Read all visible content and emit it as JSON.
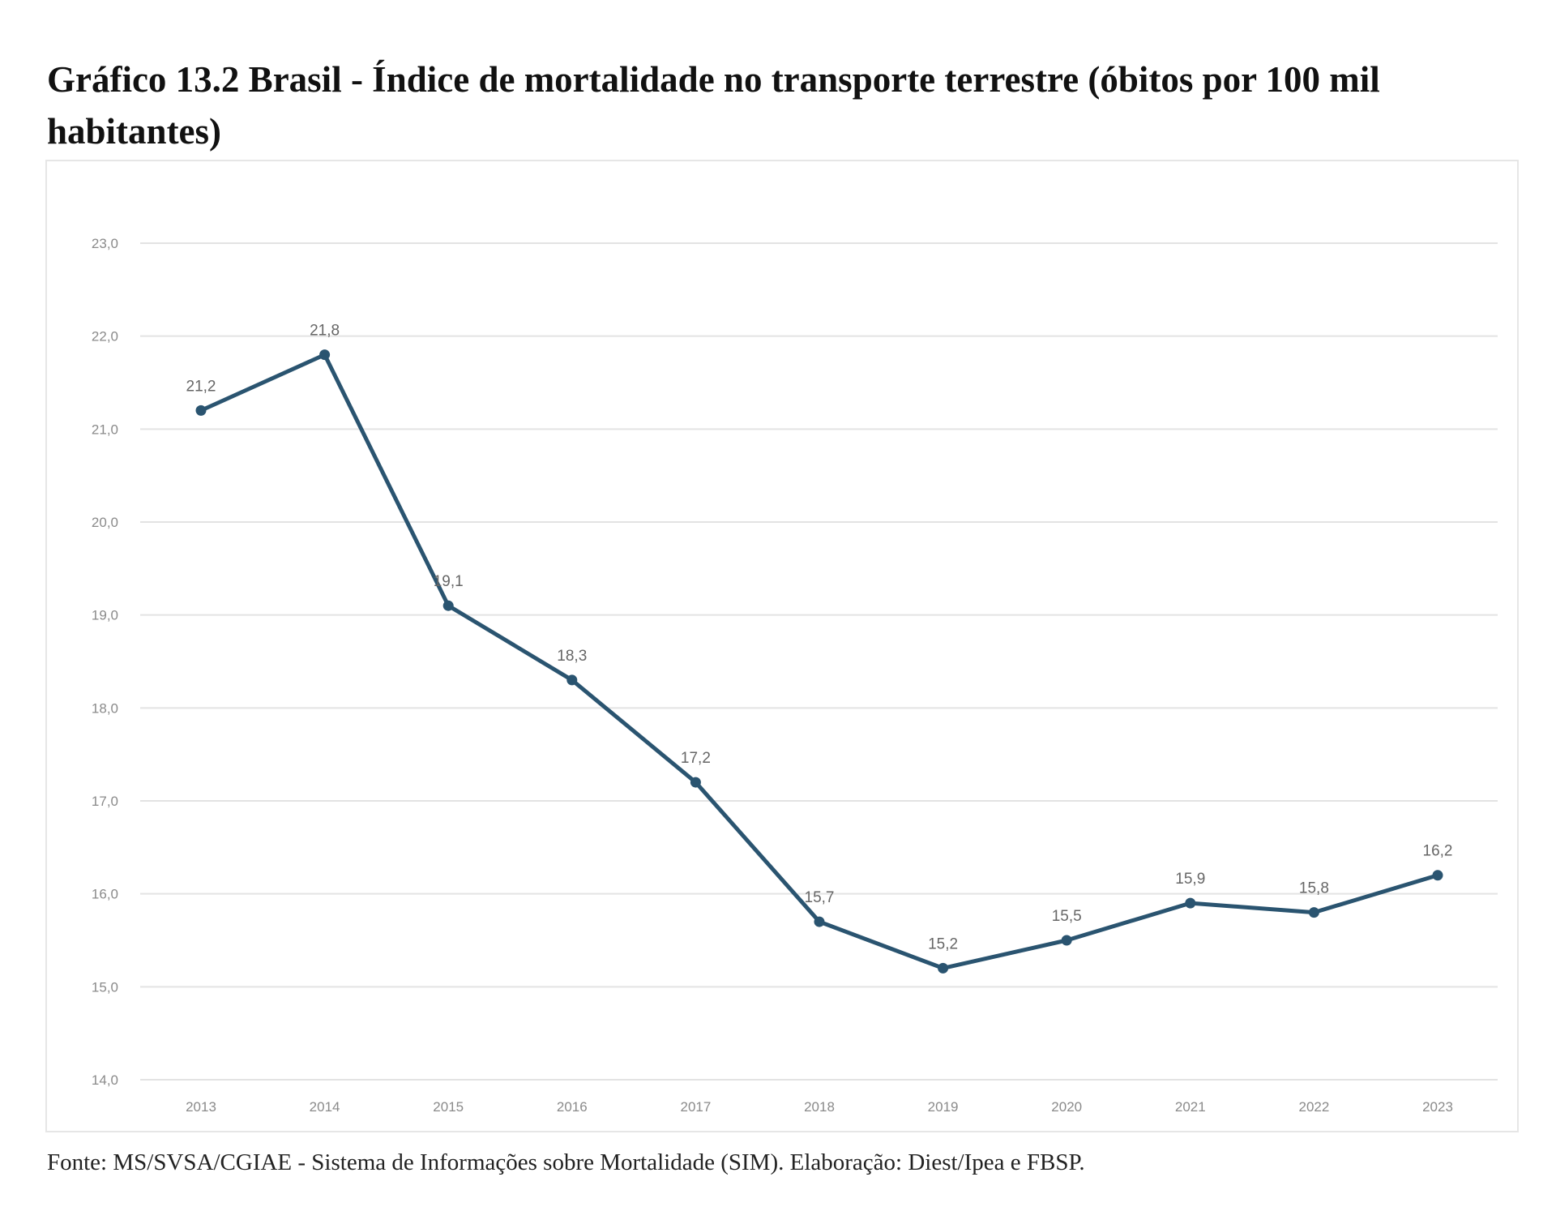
{
  "page": {
    "title": "Gráfico 13.2 Brasil - Índice de mortalidade no transporte terrestre (óbitos por 100 mil habitantes)",
    "source": "Fonte: MS/SVSA/CGIAE - Sistema de Informações sobre Mortalidade (SIM). Elaboração: Diest/Ipea e FBSP."
  },
  "chart_data": {
    "type": "line",
    "title": "Gráfico 13.2 Brasil - Índice de mortalidade no transporte terrestre (óbitos por 100 mil habitantes)",
    "xlabel": "",
    "ylabel": "",
    "categories": [
      "2013",
      "2014",
      "2015",
      "2016",
      "2017",
      "2018",
      "2019",
      "2020",
      "2021",
      "2022",
      "2023"
    ],
    "series": [
      {
        "name": "Índice de mortalidade no transporte terrestre",
        "values": [
          21.2,
          21.8,
          19.1,
          18.3,
          17.2,
          15.7,
          15.2,
          15.5,
          15.9,
          15.8,
          16.2
        ],
        "labels": [
          "21,2",
          "21,8",
          "19,1",
          "18,3",
          "17,2",
          "15,7",
          "15,2",
          "15,5",
          "15,9",
          "15,8",
          "16,2"
        ],
        "color": "#2a5470"
      }
    ],
    "yticks": [
      14,
      15,
      16,
      17,
      18,
      19,
      20,
      21,
      22,
      23
    ],
    "ytick_labels": [
      "14,0",
      "15,0",
      "16,0",
      "17,0",
      "18,0",
      "19,0",
      "20,0",
      "21,0",
      "22,0",
      "23,0"
    ],
    "ylim": [
      14,
      23
    ],
    "grid": true,
    "legend": "none",
    "colors": {
      "line": "#2a5470",
      "grid": "#e3e3e3",
      "tick_text": "#8a8a8a",
      "label_text": "#666666"
    }
  }
}
